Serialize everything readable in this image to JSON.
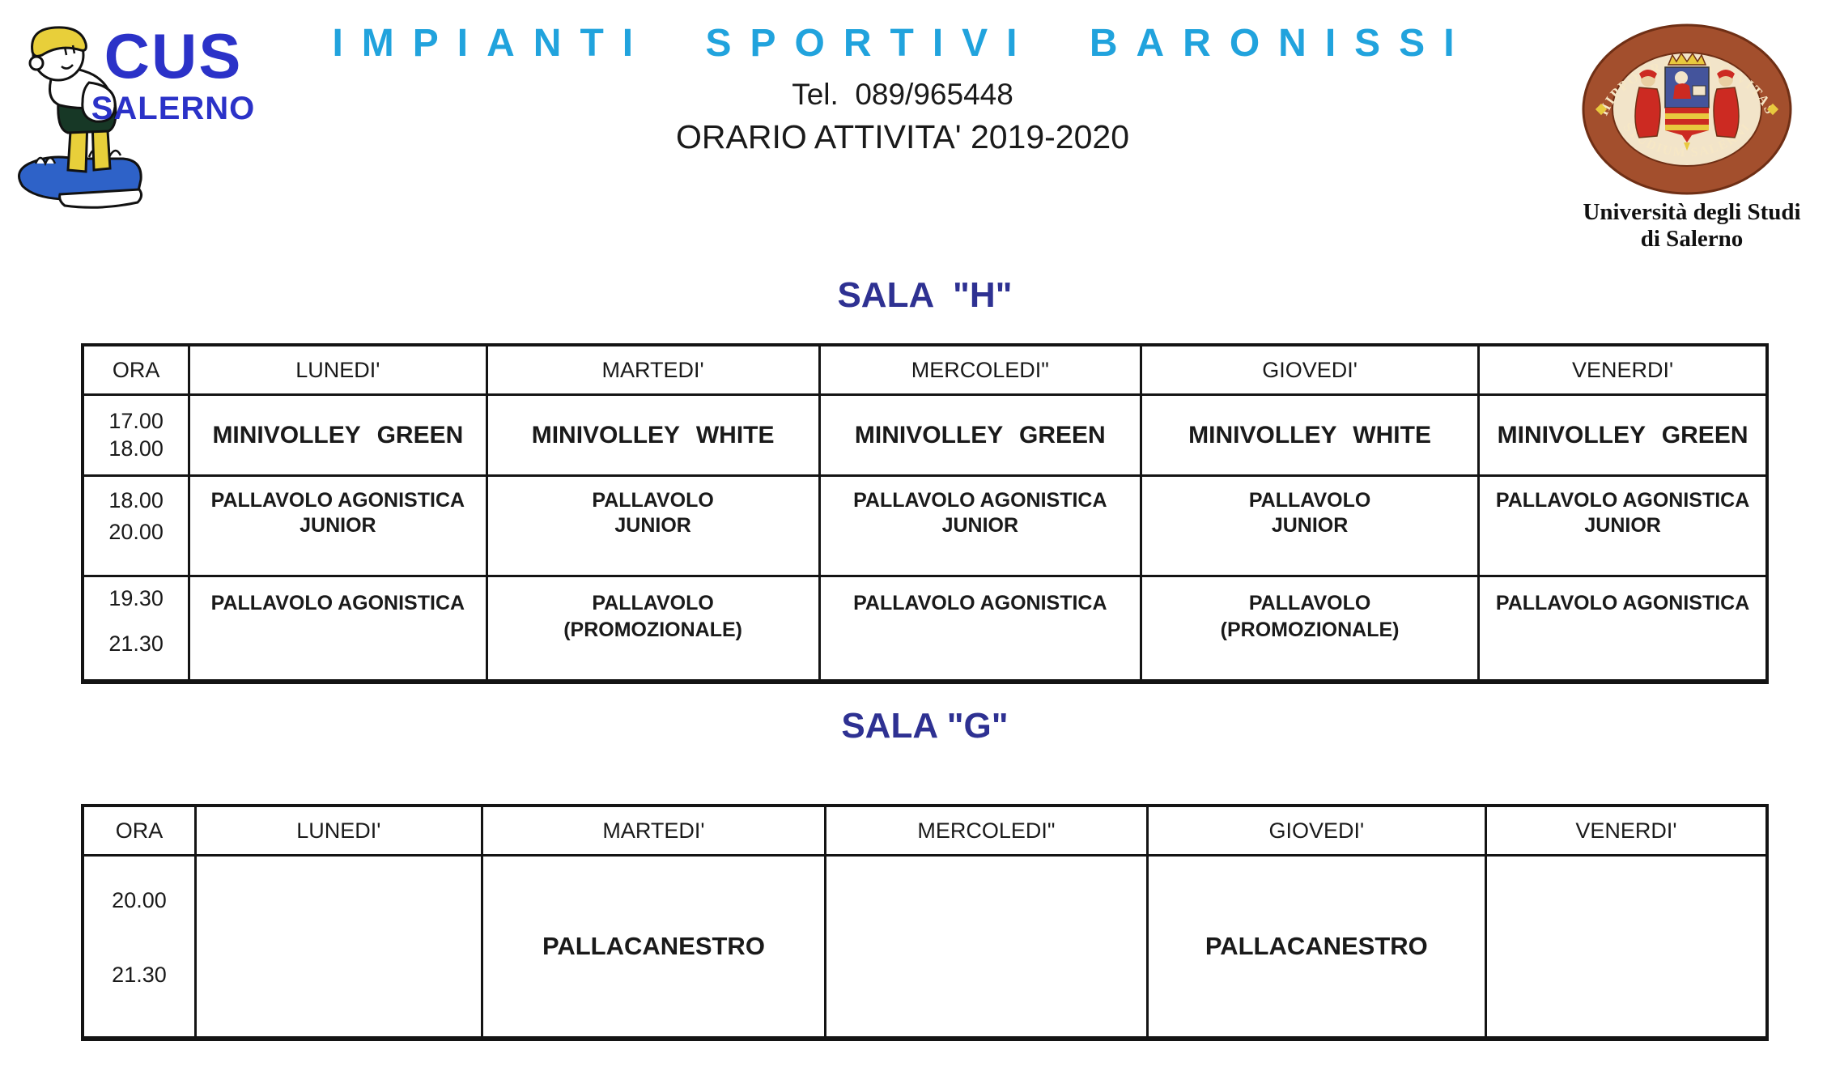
{
  "colors": {
    "title_cyan": "#21a3dd",
    "navy": "#2e3192",
    "logo_blue": "#2b32c8",
    "table_border": "#141414",
    "seal_ring": "#a34f2d",
    "seal_red": "#cc2a22",
    "seal_gold": "#e8c93e"
  },
  "header": {
    "logo": {
      "line1": "CUS",
      "line2": "SALERNO"
    },
    "title": "IMPIANTI SPORTIVI BARONISSI",
    "phone": "Tel.  089/965448",
    "subtitle": "ORARIO ATTIVITA' 2019-2020",
    "seal": {
      "top_text": "HIPPOCRATICA CIVITAS",
      "bottom_text": "STUDIUM SALERNI",
      "caption_line1": "Università degli Studi",
      "caption_line2": "di Salerno"
    }
  },
  "sala_h": {
    "title": "SALA  \"H\"",
    "columns": [
      "ORA",
      "LUNEDI'",
      "MARTEDI'",
      "MERCOLEDI\"",
      "GIOVEDI'",
      "VENERDI'"
    ],
    "rows": [
      {
        "time": [
          "17.00",
          "18.00"
        ],
        "cells": [
          "MINIVOLLEY GREEN",
          "MINIVOLLEY WHITE",
          "MINIVOLLEY GREEN",
          "MINIVOLLEY WHITE",
          "MINIVOLLEY GREEN"
        ]
      },
      {
        "time": [
          "18.00",
          "20.00"
        ],
        "cells": [
          "PALLAVOLO AGONISTICA\nJUNIOR",
          "PALLAVOLO\nJUNIOR",
          "PALLAVOLO AGONISTICA\nJUNIOR",
          "PALLAVOLO\nJUNIOR",
          "PALLAVOLO AGONISTICA\nJUNIOR"
        ]
      },
      {
        "time": [
          "19.30",
          "21.30"
        ],
        "cells": [
          "PALLAVOLO AGONISTICA",
          "PALLAVOLO\n(PROMOZIONALE)",
          "PALLAVOLO AGONISTICA",
          "PALLAVOLO\n(PROMOZIONALE)",
          "PALLAVOLO AGONISTICA"
        ]
      }
    ]
  },
  "sala_g": {
    "title": "SALA \"G\"",
    "columns": [
      "ORA",
      "LUNEDI'",
      "MARTEDI'",
      "MERCOLEDI\"",
      "GIOVEDI'",
      "VENERDI'"
    ],
    "rows": [
      {
        "time": [
          "20.00",
          "21.30"
        ],
        "cells": [
          "",
          "PALLACANESTRO",
          "",
          "PALLACANESTRO",
          ""
        ]
      }
    ]
  }
}
